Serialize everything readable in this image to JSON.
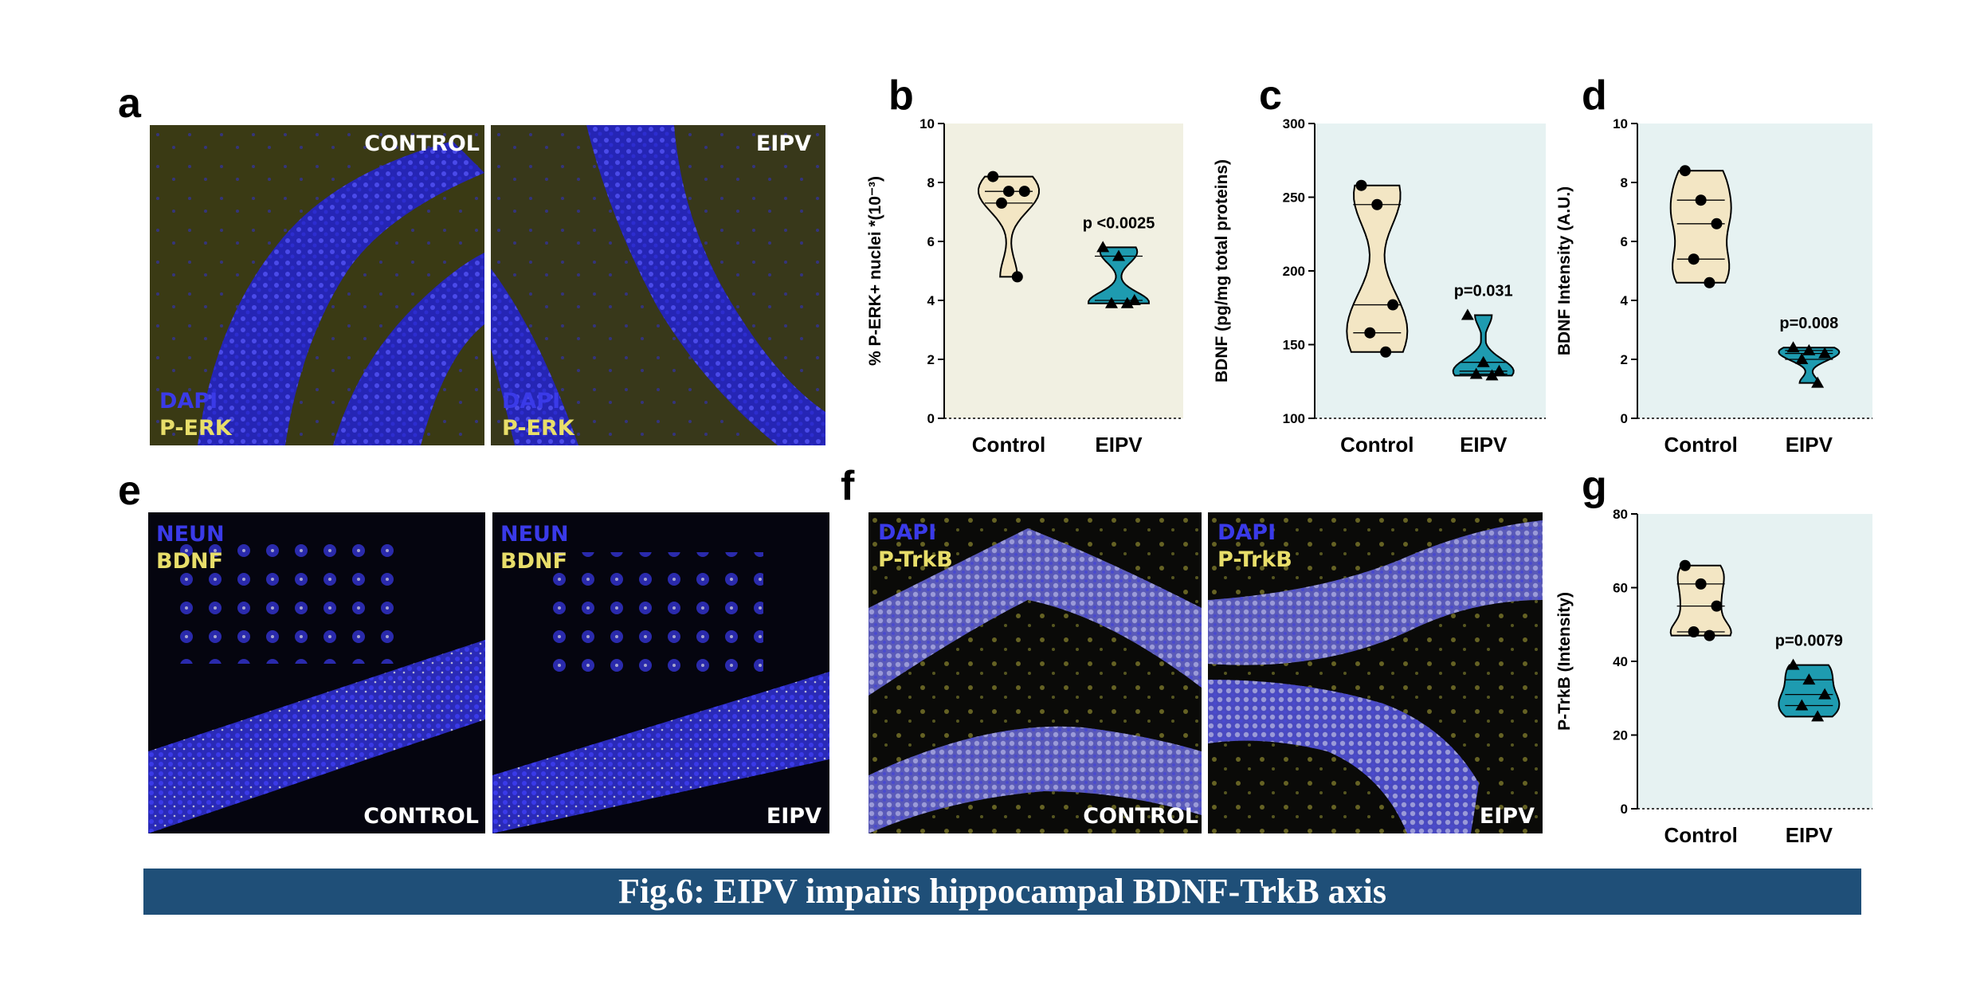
{
  "panels": {
    "a": {
      "letter": "a",
      "left": {
        "label": "CONTROL",
        "stain1": "DAPI",
        "stain2": "P-ERK"
      },
      "right": {
        "label": "EIPV",
        "stain1": "DAPI",
        "stain2": "P-ERK"
      }
    },
    "e": {
      "letter": "e",
      "left": {
        "label": "CONTROL",
        "stain1": "NEUN",
        "stain2": "BDNF"
      },
      "right": {
        "label": "EIPV",
        "stain1": "NEUN",
        "stain2": "BDNF"
      }
    },
    "f": {
      "letter": "f",
      "left": {
        "label": "CONTROL",
        "stain1": "DAPI",
        "stain2": "P-TrkB"
      },
      "right": {
        "label": "EIPV",
        "stain1": "DAPI",
        "stain2": "P-TrkB"
      }
    }
  },
  "colors": {
    "stain_blue": "#3a3ae8",
    "stain_yellow": "#e8de6a",
    "control_fill": "#f3e6c4",
    "eipv_fill": "#1e9bb0",
    "bg_b": "#f1f0e2",
    "bg_cd": "#e6f2f2",
    "caption_bg": "#1f4f78"
  },
  "chart_data": [
    {
      "type": "violin",
      "letter": "b",
      "ylabel": "% P-ERK+ nuclei *(10⁻³)",
      "ylim": [
        0,
        10
      ],
      "yticks": [
        0,
        2,
        4,
        6,
        8,
        10
      ],
      "categories": [
        "Control",
        "EIPV"
      ],
      "pvalue": "p <0.0025",
      "series": [
        {
          "name": "Control",
          "values": [
            8.2,
            7.7,
            7.7,
            7.3,
            4.8
          ]
        },
        {
          "name": "EIPV",
          "values": [
            5.8,
            5.5,
            4.0,
            3.9,
            3.9
          ]
        }
      ]
    },
    {
      "type": "violin",
      "letter": "c",
      "ylabel": "BDNF (pg/mg total proteins)",
      "ylim": [
        100,
        300
      ],
      "yticks": [
        100,
        150,
        200,
        250,
        300
      ],
      "categories": [
        "Control",
        "EIPV"
      ],
      "pvalue": "p=0.031",
      "series": [
        {
          "name": "Control",
          "values": [
            258,
            245,
            177,
            158,
            145
          ]
        },
        {
          "name": "EIPV",
          "values": [
            170,
            138,
            132,
            130,
            129
          ]
        }
      ]
    },
    {
      "type": "violin",
      "letter": "d",
      "ylabel": "BDNF Intensity (A.U.)",
      "ylim": [
        0,
        10
      ],
      "yticks": [
        0,
        2,
        4,
        6,
        8,
        10
      ],
      "categories": [
        "Control",
        "EIPV"
      ],
      "pvalue": "p=0.008",
      "series": [
        {
          "name": "Control",
          "values": [
            8.4,
            7.4,
            6.6,
            5.4,
            4.6
          ]
        },
        {
          "name": "EIPV",
          "values": [
            2.4,
            2.3,
            2.2,
            2.0,
            1.2
          ]
        }
      ]
    },
    {
      "type": "violin",
      "letter": "g",
      "ylabel": "P-TrkB (Intensity)",
      "ylim": [
        0,
        80
      ],
      "yticks": [
        0,
        20,
        40,
        60,
        80
      ],
      "categories": [
        "Control",
        "EIPV"
      ],
      "pvalue": "p=0.0079",
      "series": [
        {
          "name": "Control",
          "values": [
            66,
            61,
            55,
            48,
            47
          ]
        },
        {
          "name": "EIPV",
          "values": [
            39,
            35,
            31,
            28,
            25
          ]
        }
      ]
    }
  ],
  "caption": "Fig.6: EIPV impairs hippocampal BDNF-TrkB axis"
}
